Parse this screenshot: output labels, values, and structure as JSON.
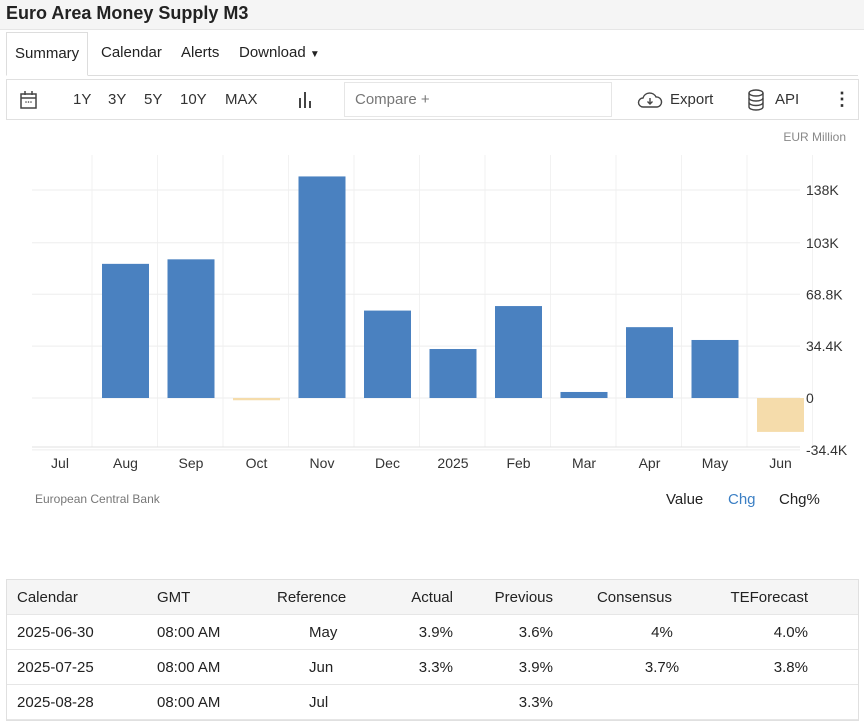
{
  "title": "Euro Area Money Supply M3",
  "tabs": [
    "Summary",
    "Calendar",
    "Alerts",
    "Download"
  ],
  "toolbar": {
    "ranges": [
      "1Y",
      "3Y",
      "5Y",
      "10Y",
      "MAX"
    ],
    "compare_placeholder": "Compare +",
    "export": "Export",
    "api": "API"
  },
  "chart_data": {
    "type": "bar",
    "unit": "EUR Million",
    "categories": [
      "Jul",
      "Aug",
      "Sep",
      "Oct",
      "Nov",
      "Dec",
      "2025",
      "Feb",
      "Mar",
      "Apr",
      "May",
      "Jun"
    ],
    "values": [
      null,
      89000,
      92000,
      -1500,
      147000,
      58000,
      32500,
      61000,
      4000,
      47000,
      38500,
      -22500
    ],
    "yticks": [
      "138K",
      "103K",
      "68.8K",
      "34.4K",
      "0",
      "-34.4K"
    ],
    "ytick_values": [
      138000,
      103000,
      68800,
      34400,
      0,
      -34400
    ],
    "ylim": [
      -34400,
      155000
    ],
    "colors": {
      "positive": "#4a81c0",
      "negative": "#f5dcab"
    },
    "grid": true,
    "source": "European Central Bank"
  },
  "modes": [
    "Value",
    "Chg",
    "Chg%"
  ],
  "active_mode_color": "#3b7fc4",
  "table": {
    "headers": [
      "Calendar",
      "GMT",
      "Reference",
      "Actual",
      "Previous",
      "Consensus",
      "TEForecast"
    ],
    "rows": [
      [
        "2025-06-30",
        "08:00 AM",
        "May",
        "3.9%",
        "3.6%",
        "4%",
        "4.0%"
      ],
      [
        "2025-07-25",
        "08:00 AM",
        "Jun",
        "3.3%",
        "3.9%",
        "3.7%",
        "3.8%"
      ],
      [
        "2025-08-28",
        "08:00 AM",
        "Jul",
        "",
        "3.3%",
        "",
        ""
      ]
    ]
  }
}
